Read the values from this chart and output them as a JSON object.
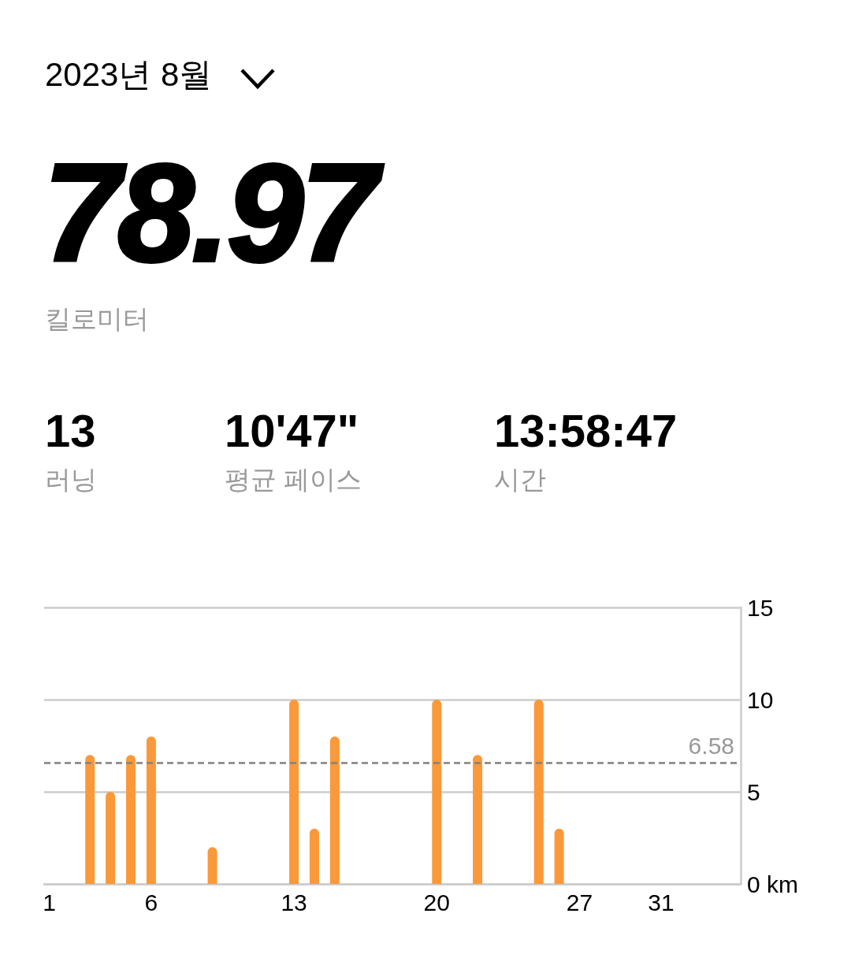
{
  "chart_data": {
    "type": "bar",
    "title": "2023년 8월",
    "annotations": [
      "78.97",
      "킬로미터",
      "13",
      "러닝",
      "10'47\"",
      "평균 페이스",
      "13:58:47",
      "시간"
    ],
    "x": [
      3,
      4,
      5,
      6,
      9,
      13,
      14,
      15,
      20,
      22,
      25,
      26
    ],
    "values": [
      7,
      5,
      7,
      8,
      2,
      10,
      3,
      8,
      10,
      7,
      10,
      3
    ],
    "color": "#fa993a",
    "xlim": [
      0.75,
      34.9
    ],
    "xticks": [
      1,
      6,
      13,
      20,
      27,
      31
    ],
    "ylim": [
      0,
      15
    ],
    "yticks": [
      {
        "value": 0,
        "label": "0 km"
      },
      5,
      10,
      15
    ],
    "grid": "y",
    "ref_lines": [
      {
        "axis": "y",
        "value": 6.58,
        "label": "6.58",
        "color": "#808080",
        "line_style": "dashed"
      }
    ]
  }
}
